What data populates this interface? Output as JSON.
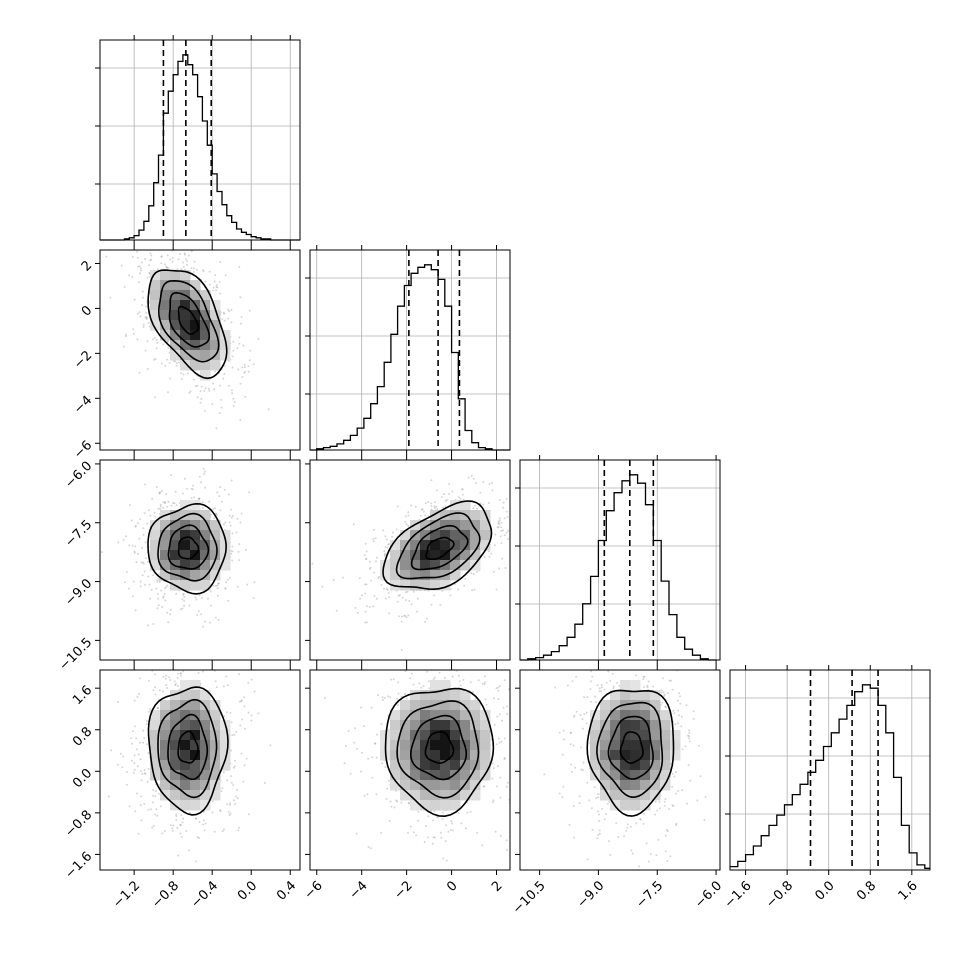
{
  "chart_data": {
    "type": "corner",
    "title": "",
    "n_params": 4,
    "params": [
      {
        "range": [
          -1.55,
          0.5
        ],
        "ticks": [
          "-1.2",
          "-0.8",
          "-0.4",
          "0.0",
          "0.4"
        ],
        "tick_values": [
          -1.2,
          -0.8,
          -0.4,
          0.0,
          0.4
        ],
        "mean": -0.65,
        "sd": 0.2
      },
      {
        "range": [
          -6.3,
          2.6
        ],
        "ticks": [
          "-6",
          "-4",
          "-2",
          "0",
          "2"
        ],
        "tick_values": [
          -6,
          -4,
          -2,
          0,
          2
        ],
        "mean": -0.55,
        "sd": 1.2
      },
      {
        "range": [
          -11.0,
          -5.9
        ],
        "ticks": [
          "-10.5",
          "-9.0",
          "-7.5",
          "-6.0"
        ],
        "tick_values": [
          -10.5,
          -9.0,
          -7.5,
          -6.0
        ],
        "mean": -8.15,
        "sd": 0.55
      },
      {
        "range": [
          -1.9,
          1.95
        ],
        "ticks": [
          "-1.6",
          "-0.8",
          "0.0",
          "0.8",
          "1.6"
        ],
        "tick_values": [
          -1.6,
          -0.8,
          0.0,
          0.8,
          1.6
        ],
        "mean": 0.45,
        "sd": 0.6
      }
    ],
    "quantile_lines": [
      [
        -0.9,
        -0.67,
        -0.41
      ],
      [
        -1.9,
        -0.6,
        0.35
      ],
      [
        -8.85,
        -8.2,
        -7.6
      ],
      [
        -0.35,
        0.45,
        0.95
      ]
    ],
    "histograms": [
      {
        "bin_edges": [
          -1.55,
          -1.5,
          -1.45,
          -1.4,
          -1.35,
          -1.3,
          -1.25,
          -1.2,
          -1.15,
          -1.1,
          -1.05,
          -1.0,
          -0.95,
          -0.9,
          -0.85,
          -0.8,
          -0.75,
          -0.7,
          -0.65,
          -0.6,
          -0.55,
          -0.5,
          -0.45,
          -0.4,
          -0.35,
          -0.3,
          -0.25,
          -0.2,
          -0.15,
          -0.1,
          -0.05,
          0.0,
          0.05,
          0.1,
          0.15,
          0.2,
          0.25,
          0.3,
          0.35,
          0.4,
          0.45,
          0.5
        ],
        "counts": [
          0,
          0,
          0,
          0,
          0,
          1,
          2,
          4,
          9,
          17,
          31,
          52,
          77,
          115,
          135,
          150,
          162,
          168,
          159,
          150,
          130,
          108,
          86,
          60,
          44,
          32,
          22,
          16,
          10,
          7,
          5,
          3,
          2,
          1,
          1,
          0,
          0,
          0,
          0,
          0,
          0
        ]
      },
      {
        "bin_edges": [
          -6.3,
          -6.0,
          -5.7,
          -5.4,
          -5.1,
          -4.8,
          -4.5,
          -4.2,
          -3.9,
          -3.6,
          -3.3,
          -3.0,
          -2.7,
          -2.4,
          -2.1,
          -1.8,
          -1.5,
          -1.2,
          -0.9,
          -0.6,
          -0.3,
          0.0,
          0.3,
          0.6,
          0.9,
          1.2,
          1.5,
          1.8,
          2.1,
          2.4,
          2.6
        ],
        "counts": [
          0,
          1,
          2,
          3,
          5,
          8,
          12,
          18,
          26,
          38,
          52,
          72,
          95,
          118,
          135,
          145,
          150,
          152,
          148,
          140,
          118,
          80,
          42,
          16,
          6,
          2,
          1,
          0,
          0,
          0
        ]
      },
      {
        "bin_edges": [
          -11.0,
          -10.8,
          -10.6,
          -10.4,
          -10.2,
          -10.0,
          -9.8,
          -9.6,
          -9.4,
          -9.2,
          -9.0,
          -8.8,
          -8.6,
          -8.4,
          -8.2,
          -8.0,
          -7.8,
          -7.6,
          -7.4,
          -7.2,
          -7.0,
          -6.8,
          -6.6,
          -6.4,
          -6.2,
          -6.0
        ],
        "counts": [
          0,
          1,
          2,
          4,
          7,
          12,
          19,
          30,
          47,
          70,
          100,
          125,
          140,
          150,
          155,
          148,
          130,
          100,
          66,
          38,
          19,
          9,
          4,
          1,
          0
        ]
      },
      {
        "bin_edges": [
          -1.9,
          -1.75,
          -1.6,
          -1.45,
          -1.3,
          -1.15,
          -1.0,
          -0.85,
          -0.7,
          -0.55,
          -0.4,
          -0.25,
          -0.1,
          0.05,
          0.2,
          0.35,
          0.5,
          0.65,
          0.8,
          0.95,
          1.1,
          1.25,
          1.4,
          1.55,
          1.7,
          1.85,
          1.95
        ],
        "counts": [
          2,
          5,
          9,
          14,
          20,
          26,
          32,
          38,
          44,
          50,
          57,
          64,
          72,
          80,
          88,
          96,
          104,
          108,
          106,
          96,
          80,
          54,
          26,
          10,
          3,
          1
        ]
      }
    ],
    "pair_stats": [
      {
        "i": 1,
        "j": 0,
        "corr": -0.5
      },
      {
        "i": 2,
        "j": 0,
        "corr": 0.0
      },
      {
        "i": 2,
        "j": 1,
        "corr": 0.45
      },
      {
        "i": 3,
        "j": 0,
        "corr": 0.0
      },
      {
        "i": 3,
        "j": 1,
        "corr": 0.0
      },
      {
        "i": 3,
        "j": 2,
        "corr": 0.0
      }
    ],
    "grid": true,
    "contour_color": "#000000",
    "point_color": "#8a8a8a"
  }
}
